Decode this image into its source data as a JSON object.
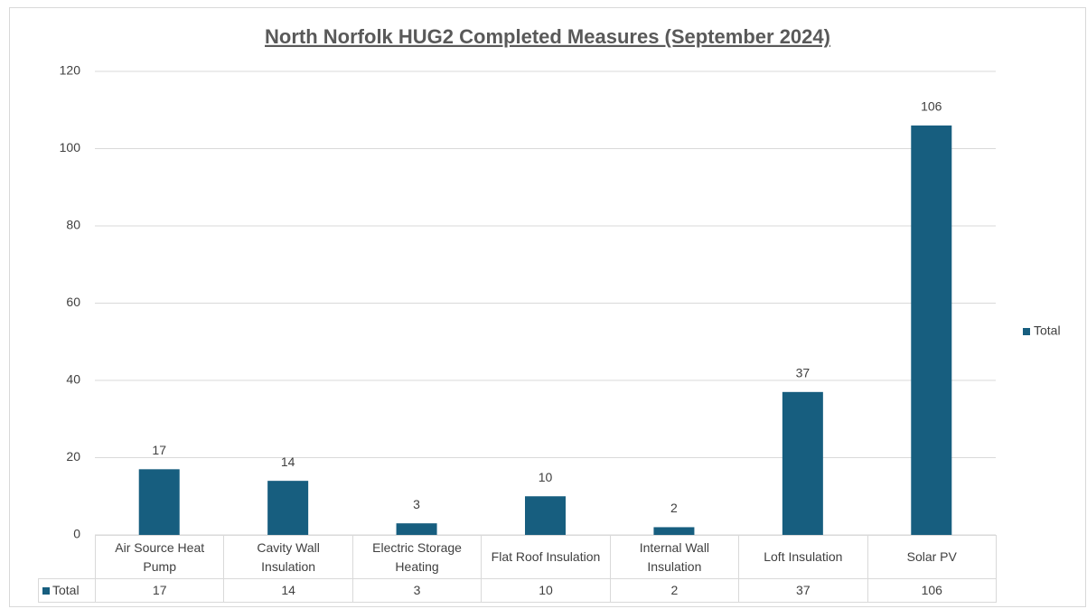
{
  "chart_data": {
    "type": "bar",
    "title": "North Norfolk HUG2 Completed Measures (September 2024)",
    "categories": [
      "Air Source Heat Pump",
      "Cavity Wall Insulation",
      "Electric Storage Heating",
      "Flat Roof Insulation",
      "Internal Wall Insulation",
      "Loft Insulation",
      "Solar PV"
    ],
    "series": [
      {
        "name": "Total",
        "color": "#175e7f",
        "values": [
          17,
          14,
          3,
          10,
          2,
          37,
          106
        ]
      }
    ],
    "ylim": [
      0,
      120
    ],
    "yticks": [
      0,
      20,
      40,
      60,
      80,
      100,
      120
    ],
    "grid": true,
    "legend": "right",
    "data_table": true
  }
}
